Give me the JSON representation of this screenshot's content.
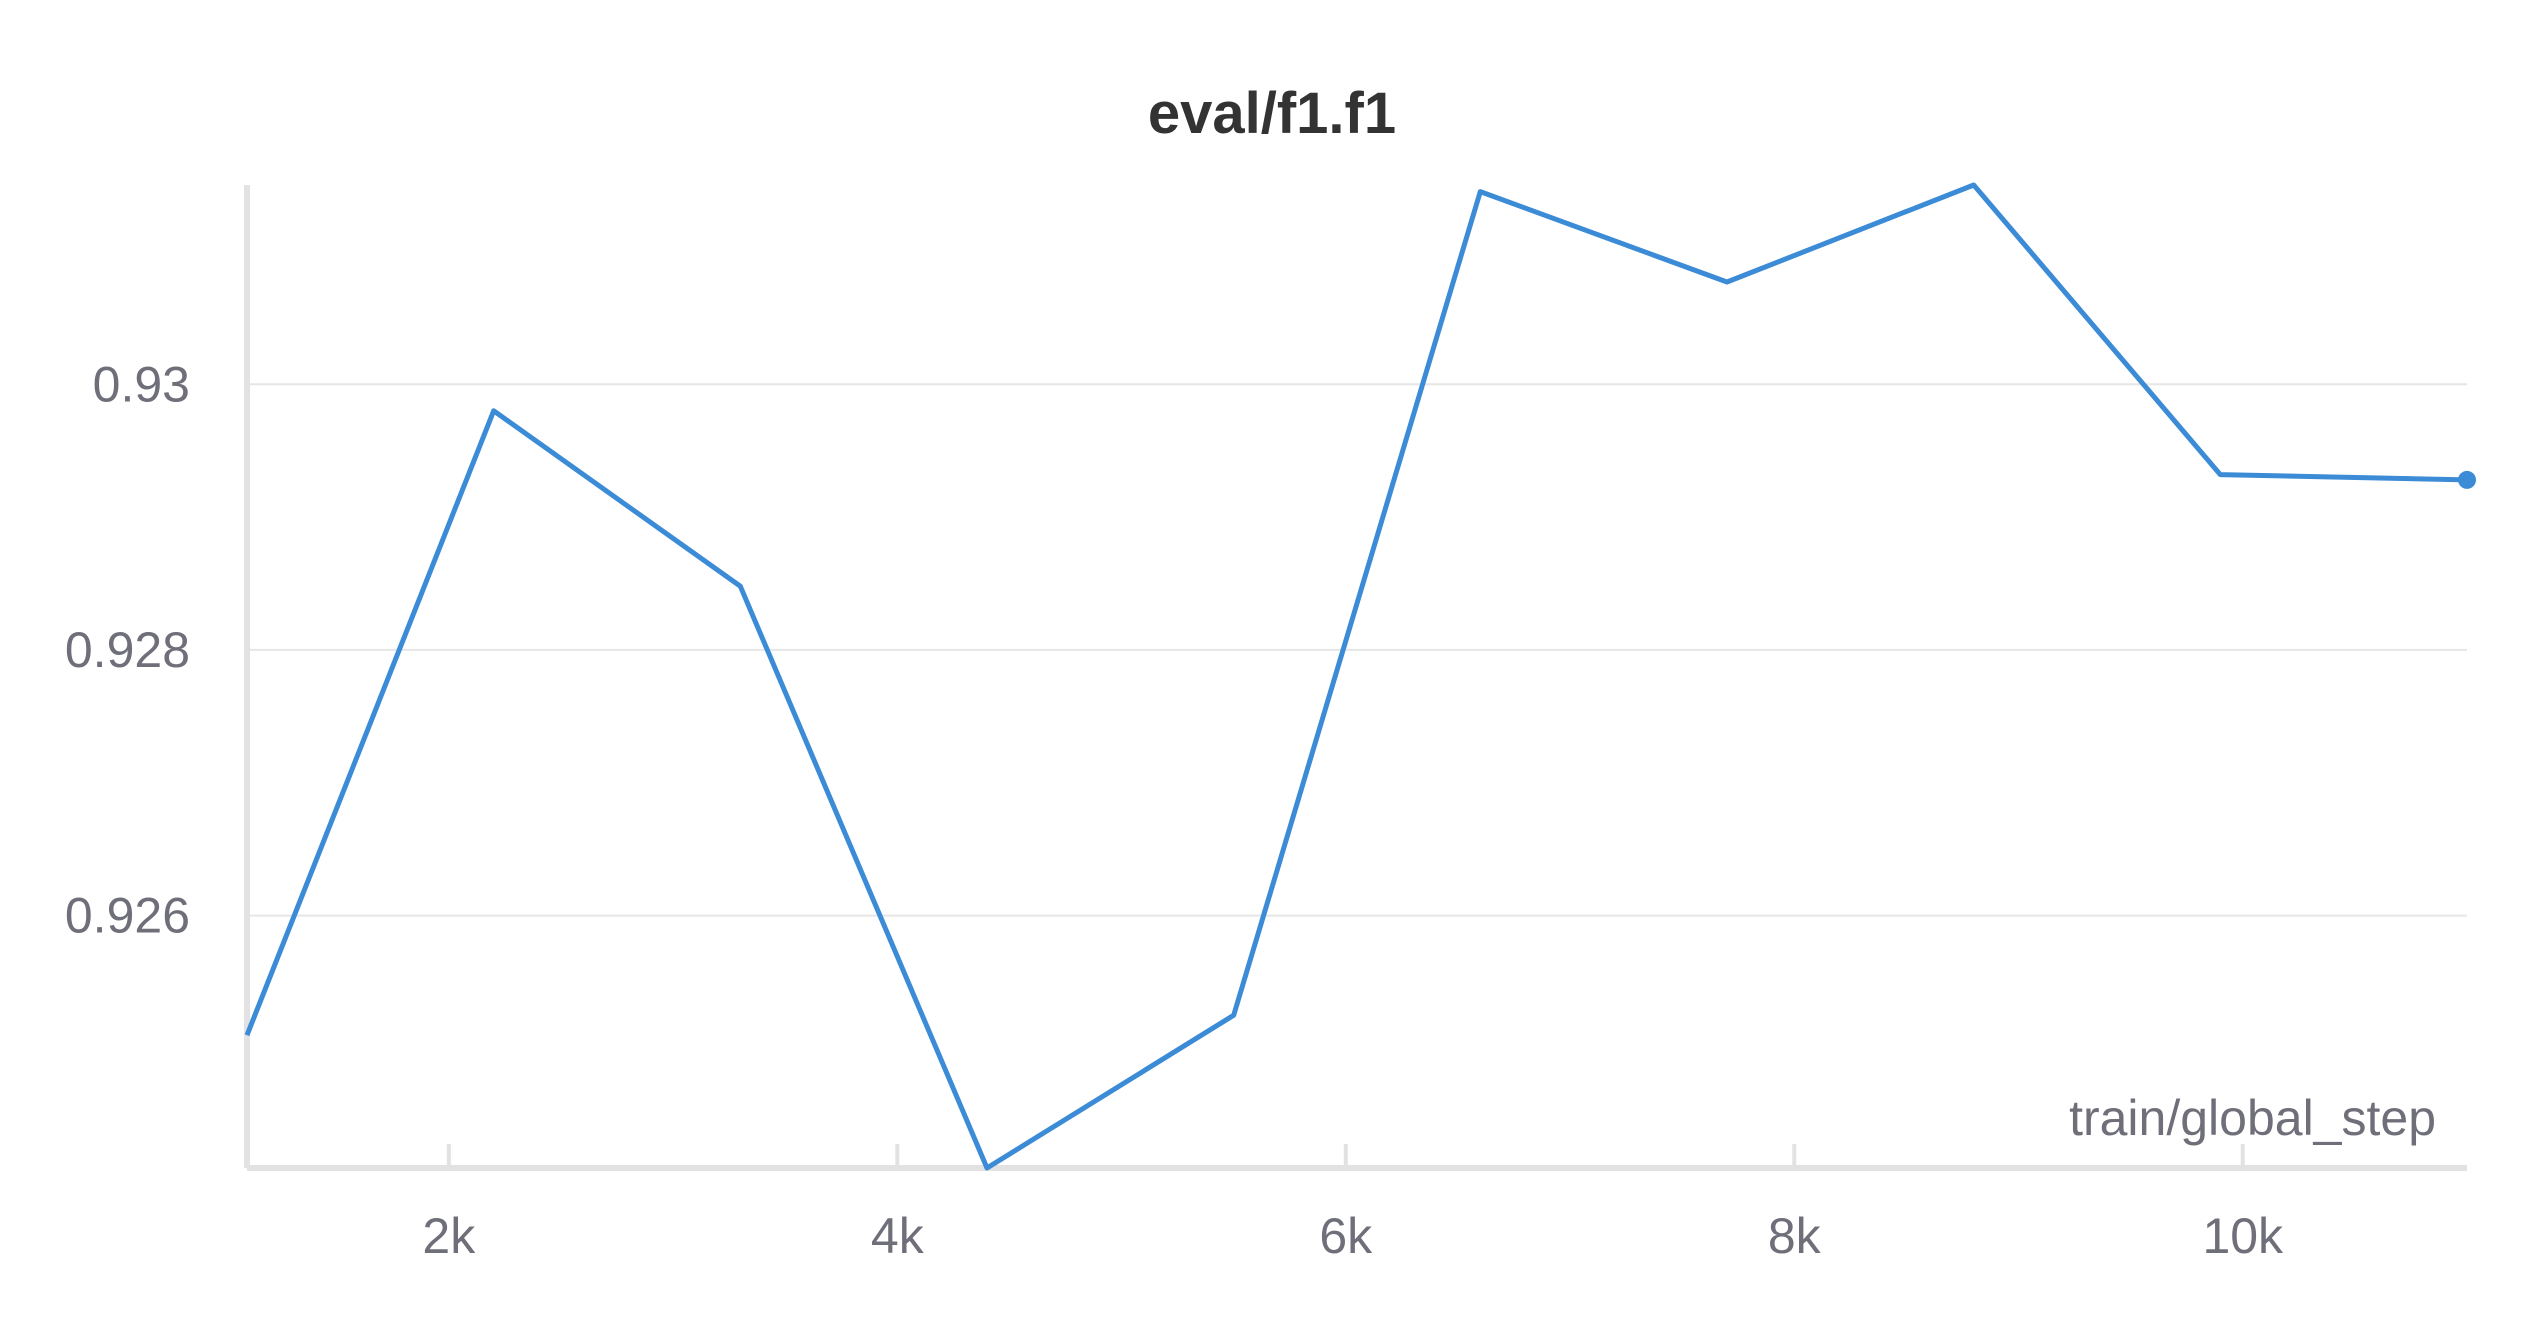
{
  "chart_data": {
    "type": "line",
    "title": "eval/f1.f1",
    "xlabel": "train/global_step",
    "ylabel": "",
    "x_tick_values": [
      2000,
      4000,
      6000,
      8000,
      10000
    ],
    "x_tick_labels": [
      "2k",
      "4k",
      "6k",
      "8k",
      "10k"
    ],
    "y_tick_values": [
      0.926,
      0.928,
      0.93
    ],
    "y_tick_labels": [
      "0.926",
      "0.928",
      "0.93"
    ],
    "xlim": [
      1100,
      11000
    ],
    "ylim": [
      0.9241,
      0.9315
    ],
    "grid": true,
    "series": [
      {
        "color": "#3b8bd6",
        "x": [
          1100,
          2200,
          3300,
          4400,
          5500,
          6600,
          7700,
          8800,
          9900,
          11000
        ],
        "y": [
          0.9251,
          0.9298,
          0.92848,
          0.9241,
          0.92525,
          0.93145,
          0.93077,
          0.9315,
          0.92932,
          0.92928
        ]
      }
    ]
  }
}
